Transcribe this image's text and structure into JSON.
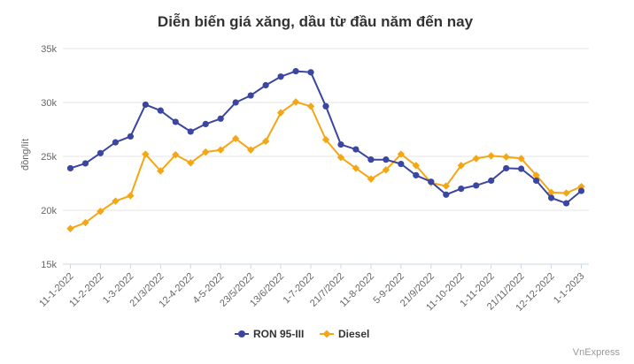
{
  "chart_data": {
    "type": "line",
    "title": "Diễn biến giá xăng, dầu từ đầu năm đến nay",
    "ylabel": "đồng/lít",
    "xlabel": "",
    "ylim": [
      15000,
      35000
    ],
    "y_ticks": [
      15000,
      20000,
      25000,
      30000,
      35000
    ],
    "y_tick_labels": [
      "15k",
      "20k",
      "25k",
      "30k",
      "35k"
    ],
    "x_tick_labels": [
      "11-1-2022",
      "11-2-2022",
      "1-3-2022",
      "21/3/2022",
      "12-4-2022",
      "4-5-2022",
      "23/5/2022",
      "13/6/2022",
      "1-7-2022",
      "21/7/2022",
      "11-8-2022",
      "5-9-2022",
      "21/9/2022",
      "11-10-2022",
      "1-11-2022",
      "21/11/2022",
      "12-12-2022",
      "1-1-2023"
    ],
    "series": [
      {
        "name": "RON 95-III",
        "color": "#3a46a0",
        "values": [
          23900,
          24350,
          25300,
          26300,
          26850,
          29800,
          29250,
          28200,
          27300,
          28000,
          28500,
          30000,
          30650,
          31600,
          32400,
          32900,
          32800,
          29650,
          26100,
          25650,
          24700,
          24700,
          24300,
          23250,
          22650,
          21450,
          22000,
          22300,
          22750,
          23900,
          23850,
          22750,
          21150,
          20650,
          21800
        ]
      },
      {
        "name": "Diesel",
        "color": "#f5a614",
        "values": [
          18300,
          18850,
          19900,
          20850,
          21350,
          25200,
          23650,
          25150,
          24400,
          25400,
          25600,
          26650,
          25600,
          26400,
          29050,
          30050,
          29650,
          26550,
          24900,
          23900,
          22900,
          23750,
          25200,
          24150,
          22550,
          22250,
          24150,
          24800,
          25050,
          24950,
          24800,
          23250,
          21650,
          21600,
          22200
        ]
      }
    ],
    "legend_position": "bottom",
    "grid": true,
    "source": "VnExpress"
  }
}
